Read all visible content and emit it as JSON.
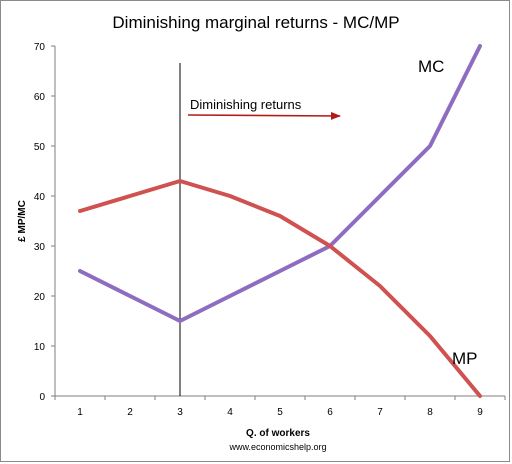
{
  "chart_data": {
    "type": "line",
    "title": "Diminishing marginal returns - MC/MP",
    "xlabel": "Q. of workers",
    "ylabel": "£ MP/MC",
    "source": "www.economicshelp.org",
    "x": [
      1,
      2,
      3,
      4,
      5,
      6,
      7,
      8,
      9
    ],
    "xlim": [
      0.5,
      9.5
    ],
    "ylim": [
      0,
      70
    ],
    "yticks": [
      0,
      10,
      20,
      30,
      40,
      50,
      60,
      70
    ],
    "series": [
      {
        "name": "MC",
        "color": "#8e6cbf",
        "values": [
          25,
          20,
          15,
          20,
          25,
          30,
          40,
          50,
          70
        ]
      },
      {
        "name": "MP",
        "color": "#cf5251",
        "values": [
          37,
          40,
          43,
          40,
          36,
          30,
          22,
          12,
          0
        ]
      }
    ],
    "annotations": {
      "vertical_line_x": 3,
      "arrow_text": "Diminishing returns",
      "arrow_color": "#b31b1b"
    },
    "grid": false,
    "legend": "inline labels"
  }
}
